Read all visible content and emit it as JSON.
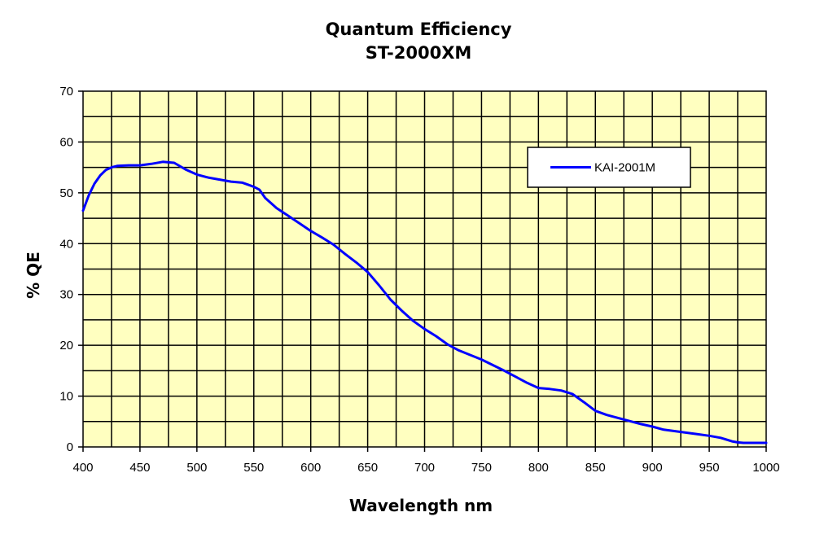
{
  "chart_data": {
    "type": "line",
    "title": "Quantum Efficiency",
    "subtitle": "ST-2000XM",
    "xlabel": "Wavelength nm",
    "ylabel": "% QE",
    "xlim": [
      400,
      1000
    ],
    "ylim": [
      0,
      70
    ],
    "x_major_ticks": [
      400,
      450,
      500,
      550,
      600,
      650,
      700,
      750,
      800,
      850,
      900,
      950,
      1000
    ],
    "y_major_ticks": [
      0,
      10,
      20,
      30,
      40,
      50,
      60,
      70
    ],
    "x_grid_step": 25,
    "y_grid_step": 5,
    "grid": true,
    "plot_background": "#ffffc0",
    "legend": {
      "position": "top-right",
      "entries": [
        "KAI-2001M"
      ]
    },
    "series": [
      {
        "name": "KAI-2001M",
        "color": "#0000ff",
        "x": [
          400,
          405,
          410,
          415,
          420,
          425,
          430,
          440,
          450,
          460,
          470,
          475,
          480,
          490,
          500,
          510,
          520,
          530,
          540,
          550,
          555,
          560,
          570,
          580,
          590,
          600,
          610,
          620,
          630,
          640,
          650,
          660,
          670,
          680,
          690,
          700,
          710,
          720,
          730,
          740,
          750,
          760,
          770,
          780,
          790,
          800,
          810,
          820,
          830,
          840,
          850,
          860,
          870,
          880,
          890,
          900,
          910,
          920,
          930,
          940,
          950,
          960,
          970,
          975,
          980,
          990,
          1000
        ],
        "y": [
          46.5,
          49.5,
          51.8,
          53.4,
          54.5,
          55.0,
          55.3,
          55.4,
          55.4,
          55.7,
          56.1,
          56.0,
          55.9,
          54.6,
          53.6,
          53.0,
          52.6,
          52.2,
          52.0,
          51.2,
          50.6,
          49.0,
          47.0,
          45.5,
          44.0,
          42.5,
          41.2,
          39.8,
          38.0,
          36.3,
          34.4,
          31.8,
          29.0,
          26.8,
          24.8,
          23.2,
          21.8,
          20.2,
          19.0,
          18.1,
          17.2,
          16.1,
          15.0,
          13.8,
          12.6,
          11.6,
          11.4,
          11.1,
          10.4,
          8.8,
          7.1,
          6.3,
          5.7,
          5.1,
          4.5,
          4.0,
          3.4,
          3.1,
          2.8,
          2.5,
          2.2,
          1.8,
          1.1,
          0.9,
          0.8,
          0.8,
          0.8
        ]
      }
    ]
  }
}
